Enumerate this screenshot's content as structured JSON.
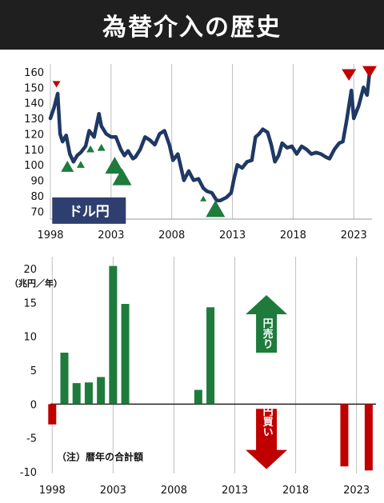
{
  "title": "為替介入の歴史",
  "chart_data": [
    {
      "type": "line",
      "label": "ドル円",
      "x_ticks": [
        "1998",
        "2003",
        "2008",
        "2013",
        "2018",
        "2023"
      ],
      "y_ticks": [
        70,
        80,
        90,
        100,
        110,
        120,
        130,
        140,
        150,
        160
      ],
      "xlim": [
        1998,
        2024.5
      ],
      "ylim": [
        65,
        162
      ],
      "grid": "vertical",
      "line_color": "#1f3864",
      "x": [
        1998.0,
        1998.3,
        1998.6,
        1998.8,
        1999.0,
        1999.3,
        1999.6,
        1999.9,
        2000.2,
        2000.5,
        2000.9,
        2001.2,
        2001.6,
        2002.0,
        2002.2,
        2002.6,
        2003.0,
        2003.4,
        2003.8,
        2004.1,
        2004.4,
        2004.8,
        2005.0,
        2005.4,
        2005.8,
        2006.2,
        2006.6,
        2007.0,
        2007.4,
        2007.8,
        2008.1,
        2008.5,
        2008.8,
        2009.0,
        2009.4,
        2009.8,
        2010.2,
        2010.6,
        2010.9,
        2011.3,
        2011.7,
        2012.0,
        2012.5,
        2012.9,
        2013.1,
        2013.4,
        2013.8,
        2014.2,
        2014.6,
        2014.9,
        2015.2,
        2015.5,
        2015.9,
        2016.2,
        2016.5,
        2016.8,
        2017.1,
        2017.5,
        2017.9,
        2018.3,
        2018.7,
        2019.1,
        2019.5,
        2019.9,
        2020.3,
        2020.7,
        2021.0,
        2021.4,
        2021.8,
        2022.1,
        2022.4,
        2022.8,
        2023.0,
        2023.4,
        2023.8,
        2024.1,
        2024.3
      ],
      "y": [
        130,
        137,
        146,
        120,
        115,
        119,
        107,
        102,
        106,
        108,
        112,
        122,
        118,
        133,
        125,
        120,
        118,
        118,
        110,
        106,
        109,
        104,
        105,
        110,
        118,
        116,
        113,
        120,
        122,
        113,
        103,
        107,
        97,
        90,
        96,
        90,
        91,
        85,
        83,
        82,
        77,
        77,
        79,
        82,
        90,
        100,
        98,
        102,
        103,
        118,
        120,
        123,
        121,
        113,
        102,
        106,
        114,
        111,
        112,
        107,
        112,
        110,
        107,
        108,
        107,
        105,
        104,
        110,
        114,
        115,
        128,
        148,
        130,
        138,
        150,
        145,
        160
      ]
    },
    {
      "type": "bar",
      "ylabel": "（兆円／年）",
      "note": "（注）暦年の合計額",
      "x_ticks": [
        "1998",
        "2003",
        "2008",
        "2013",
        "2018",
        "2023"
      ],
      "y_ticks": [
        "20",
        "15",
        "10",
        "5",
        "0",
        "-5",
        "-10"
      ],
      "ylim": [
        -10,
        20
      ],
      "grid": "vertical",
      "categories": [
        "1998",
        "1999",
        "2000",
        "2001",
        "2002",
        "2003",
        "2004",
        "2010",
        "2011",
        "2022",
        "2024"
      ],
      "values": [
        -3.0,
        7.6,
        3.1,
        3.2,
        4.0,
        20.4,
        14.8,
        2.1,
        14.3,
        -9.2,
        -9.8
      ],
      "colors": {
        "buy_yen": "#c00000",
        "sell_yen": "#1e7b3c"
      },
      "arrows": {
        "sell_yen": "円売り",
        "buy_yen": "円買い"
      }
    }
  ],
  "legend_box": {
    "color": "#2e3f6f"
  },
  "markers": {
    "color_sell": "#1e7b3c",
    "color_buy": "#c00000"
  }
}
